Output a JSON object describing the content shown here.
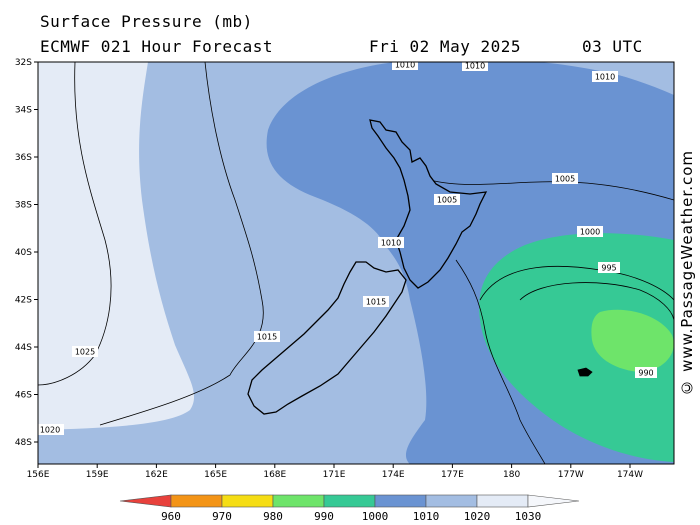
{
  "header": {
    "title": "Surface Pressure (mb)",
    "model_line": "ECMWF 021 Hour Forecast",
    "date": "Fri 02 May 2025",
    "time": "03 UTC"
  },
  "credit": "© www.PassageWeather.com",
  "latitude_labels": [
    "32S",
    "34S",
    "36S",
    "38S",
    "40S",
    "42S",
    "44S",
    "46S",
    "48S"
  ],
  "longitude_labels": [
    "156E",
    "159E",
    "162E",
    "165E",
    "168E",
    "171E",
    "174E",
    "177E",
    "180",
    "177W",
    "174W"
  ],
  "isobar_labels": [
    "1010",
    "1010",
    "1010",
    "1005",
    "1005",
    "1010",
    "1000",
    "995",
    "1015",
    "990",
    "1025",
    "1015",
    "1020"
  ],
  "legend": {
    "values": [
      "960",
      "970",
      "980",
      "990",
      "1000",
      "1010",
      "1020",
      "1030"
    ],
    "colors": [
      "#e8413c",
      "#f39417",
      "#f5dd14",
      "#6ee46a",
      "#36c995",
      "#6a93d2",
      "#a3bde2",
      "#e4ebf6",
      "#f5f7fb"
    ]
  },
  "fill_colors": {
    "highest": "#e4ebf6",
    "high": "#a3bde2",
    "mid": "#6a93d2",
    "low": "#36c995",
    "lowest": "#6ee46a"
  }
}
